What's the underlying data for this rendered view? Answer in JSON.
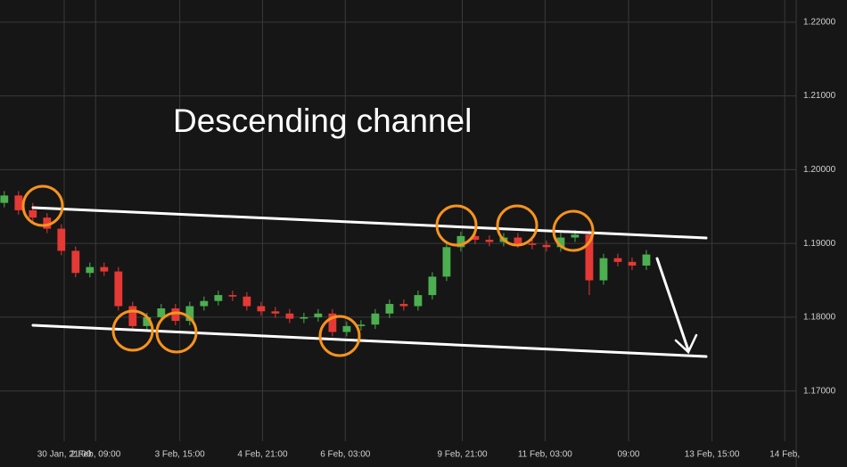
{
  "chart_data": {
    "type": "candlestick",
    "title": "Descending channel",
    "up_color": "#4caf50",
    "down_color": "#e53935",
    "grid": true,
    "x": [
      0,
      1,
      2,
      3,
      4,
      5,
      6,
      7,
      8,
      9,
      10,
      11,
      12,
      13,
      14,
      15,
      16,
      17,
      18,
      19,
      20,
      21,
      22,
      23,
      24,
      25,
      26,
      27,
      28,
      29,
      30,
      31,
      32,
      33,
      34,
      35,
      36,
      37,
      38,
      39,
      40,
      41,
      42,
      43,
      44,
      45
    ],
    "open": [
      1.1955,
      1.1965,
      1.1945,
      1.1935,
      1.192,
      1.189,
      1.186,
      1.1868,
      1.1862,
      1.1815,
      1.1788,
      1.18,
      1.1812,
      1.1795,
      1.1815,
      1.1822,
      1.183,
      1.1828,
      1.1815,
      1.1808,
      1.1805,
      1.1798,
      1.18,
      1.1805,
      1.178,
      1.1788,
      1.179,
      1.1805,
      1.1818,
      1.1815,
      1.183,
      1.1855,
      1.1895,
      1.191,
      1.1905,
      1.1902,
      1.1908,
      1.19,
      1.1898,
      1.1895,
      1.1908,
      1.1912,
      1.185,
      1.188,
      1.1875,
      1.187
    ],
    "high": [
      1.1971,
      1.1971,
      1.1955,
      1.1941,
      1.1926,
      1.1896,
      1.1874,
      1.1874,
      1.1868,
      1.1821,
      1.1806,
      1.1818,
      1.1818,
      1.1821,
      1.1828,
      1.1836,
      1.1836,
      1.1834,
      1.1821,
      1.1814,
      1.1811,
      1.1806,
      1.1811,
      1.1811,
      1.1794,
      1.1796,
      1.1811,
      1.1824,
      1.1824,
      1.1836,
      1.1861,
      1.1901,
      1.1916,
      1.1916,
      1.1911,
      1.1914,
      1.1914,
      1.1906,
      1.1904,
      1.1914,
      1.1918,
      1.1918,
      1.1886,
      1.1886,
      1.1881,
      1.1891
    ],
    "low": [
      1.1949,
      1.1939,
      1.1929,
      1.1914,
      1.1884,
      1.1854,
      1.1854,
      1.1856,
      1.1809,
      1.1782,
      1.1782,
      1.1794,
      1.1789,
      1.1789,
      1.1809,
      1.1816,
      1.1822,
      1.1809,
      1.1802,
      1.1799,
      1.1792,
      1.1792,
      1.1794,
      1.1774,
      1.1774,
      1.1782,
      1.1784,
      1.1799,
      1.1809,
      1.1809,
      1.1824,
      1.1849,
      1.1889,
      1.1899,
      1.1896,
      1.1896,
      1.1894,
      1.1892,
      1.1889,
      1.1889,
      1.1902,
      1.183,
      1.1844,
      1.1869,
      1.1864,
      1.1864
    ],
    "close": [
      1.1965,
      1.1945,
      1.1935,
      1.192,
      1.189,
      1.186,
      1.1868,
      1.1862,
      1.1815,
      1.1788,
      1.18,
      1.1812,
      1.1795,
      1.1815,
      1.1822,
      1.183,
      1.1828,
      1.1815,
      1.1808,
      1.1805,
      1.1798,
      1.18,
      1.1805,
      1.178,
      1.1788,
      1.179,
      1.1805,
      1.1818,
      1.1815,
      1.183,
      1.1855,
      1.1895,
      1.191,
      1.1905,
      1.1902,
      1.1908,
      1.19,
      1.1898,
      1.1895,
      1.1908,
      1.1912,
      1.185,
      1.188,
      1.1875,
      1.187,
      1.1885
    ],
    "xlim": [
      -0.3,
      55.5
    ],
    "xticks": [
      {
        "value": 4.2,
        "label": "30 Jan, 21:00"
      },
      {
        "value": 6.4,
        "label": "2 Feb, 09:00"
      },
      {
        "value": 12.3,
        "label": "3 Feb, 15:00"
      },
      {
        "value": 18.1,
        "label": "4 Feb, 21:00"
      },
      {
        "value": 23.9,
        "label": "6 Feb, 03:00"
      },
      {
        "value": 32.1,
        "label": "9 Feb, 21:00"
      },
      {
        "value": 37.9,
        "label": "11 Feb, 03:00"
      },
      {
        "value": 43.75,
        "label": "09:00"
      },
      {
        "value": 49.6,
        "label": "13 Feb, 15:00"
      },
      {
        "value": 54.7,
        "label": "14 Feb,"
      }
    ],
    "ylim": [
      1.1632,
      1.223
    ],
    "yticks": [
      {
        "value": 1.17,
        "label": "1.17000"
      },
      {
        "value": 1.18,
        "label": "1.18000"
      },
      {
        "value": 1.19,
        "label": "1.19000"
      },
      {
        "value": 1.2,
        "label": "1.20000"
      },
      {
        "value": 1.21,
        "label": "1.21000"
      },
      {
        "value": 1.22,
        "label": "1.22000"
      }
    ]
  }
}
